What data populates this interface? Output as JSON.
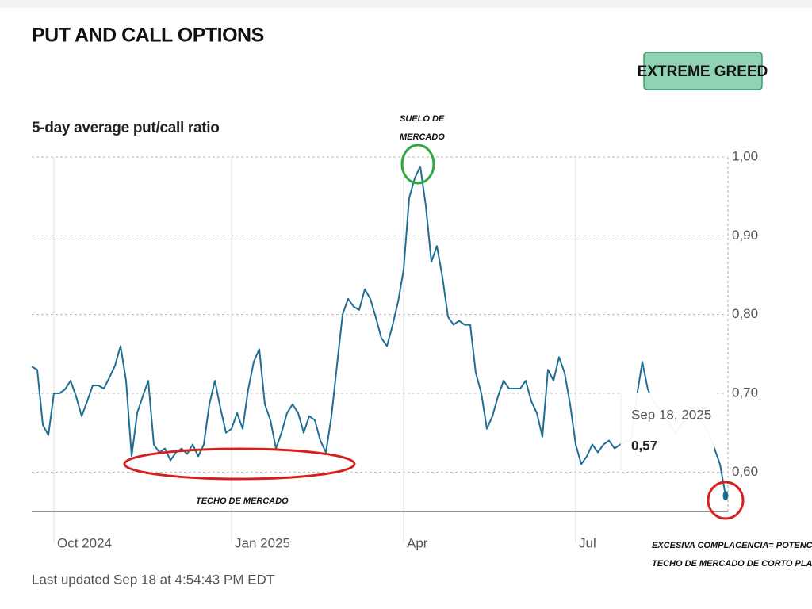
{
  "chart_data": {
    "type": "line",
    "title": "PUT AND CALL OPTIONS",
    "badge": "EXTREME GREED",
    "subtitle": "5-day average put/call ratio",
    "series": [
      {
        "name": "5-day average put/call ratio",
        "color": "#1f6f93",
        "values": [
          0.734,
          0.73,
          0.66,
          0.647,
          0.7,
          0.7,
          0.705,
          0.716,
          0.696,
          0.671,
          0.69,
          0.71,
          0.71,
          0.706,
          0.72,
          0.735,
          0.76,
          0.716,
          0.62,
          0.675,
          0.696,
          0.716,
          0.635,
          0.625,
          0.63,
          0.615,
          0.625,
          0.63,
          0.623,
          0.635,
          0.62,
          0.635,
          0.686,
          0.716,
          0.681,
          0.65,
          0.655,
          0.675,
          0.655,
          0.705,
          0.74,
          0.756,
          0.686,
          0.666,
          0.63,
          0.65,
          0.675,
          0.686,
          0.675,
          0.65,
          0.671,
          0.666,
          0.64,
          0.625,
          0.671,
          0.736,
          0.8,
          0.82,
          0.81,
          0.806,
          0.832,
          0.82,
          0.796,
          0.77,
          0.76,
          0.786,
          0.816,
          0.857,
          0.948,
          0.973,
          0.988,
          0.938,
          0.867,
          0.887,
          0.847,
          0.797,
          0.787,
          0.792,
          0.787,
          0.787,
          0.726,
          0.7,
          0.655,
          0.671,
          0.696,
          0.716,
          0.706,
          0.706,
          0.706,
          0.716,
          0.69,
          0.675,
          0.645,
          0.73,
          0.716,
          0.746,
          0.726,
          0.686,
          0.635,
          0.61,
          0.62,
          0.635,
          0.625,
          0.635,
          0.64,
          0.63,
          0.635,
          0.64,
          0.64,
          0.696,
          0.74,
          0.705,
          0.69,
          0.68,
          0.67,
          0.66,
          0.65,
          0.66,
          0.67,
          0.68,
          0.67,
          0.66,
          0.65,
          0.63,
          0.61,
          0.57
        ]
      }
    ],
    "xlim": [
      0,
      125
    ],
    "xticks": [
      {
        "value": 4,
        "label": "Oct 2024"
      },
      {
        "value": 36,
        "label": "Jan 2025"
      },
      {
        "value": 67,
        "label": "Apr"
      },
      {
        "value": 98,
        "label": "Jul"
      }
    ],
    "ylim": [
      0.55,
      1.0
    ],
    "yticks": [
      {
        "value": 0.6,
        "label": "0,60"
      },
      {
        "value": 0.7,
        "label": "0,70"
      },
      {
        "value": 0.8,
        "label": "0,80"
      },
      {
        "value": 0.9,
        "label": "0,90"
      },
      {
        "value": 1.0,
        "label": "1,00"
      }
    ],
    "grid": true,
    "tooltip": {
      "date": "Sep 18, 2025",
      "value_label": "0,57"
    },
    "annotations": [
      {
        "lines": [
          "SUELO DE",
          "MERCADO"
        ]
      },
      {
        "lines": [
          "TECHO DE MERCADO"
        ]
      },
      {
        "lines": [
          "EXCESIVA COMPLACENCIA= POTENCIAL",
          "TECHO DE MERCADO DE CORTO PLAZO"
        ]
      }
    ],
    "footer": "Last updated Sep 18 at 4:54:43 PM EDT"
  }
}
